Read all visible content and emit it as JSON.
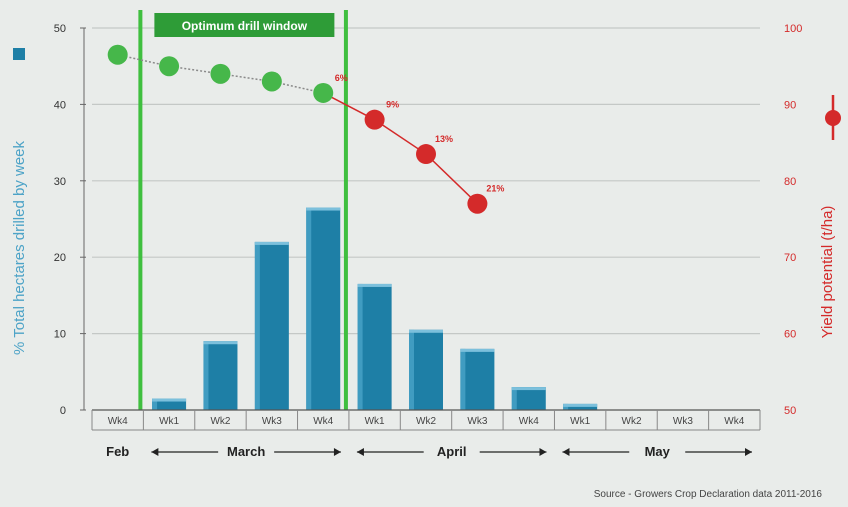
{
  "chart_data": {
    "type": "bar",
    "categories": [
      "Wk4",
      "Wk1",
      "Wk2",
      "Wk3",
      "Wk4",
      "Wk1",
      "Wk2",
      "Wk3",
      "Wk4",
      "Wk1",
      "Wk2",
      "Wk3",
      "Wk4"
    ],
    "months": [
      {
        "name": "Feb",
        "arrows": false
      },
      {
        "name": "March",
        "arrows": true
      },
      {
        "name": "April",
        "arrows": true
      },
      {
        "name": "May",
        "arrows": true
      }
    ],
    "bars": {
      "values": [
        0,
        1.5,
        9,
        22,
        26.5,
        16.5,
        10.5,
        8,
        3,
        0.8,
        0,
        0,
        0
      ],
      "color": "#1e7fa6"
    },
    "yield_line": {
      "values": [
        96.5,
        95,
        94,
        93,
        91.5,
        88,
        83.5,
        77
      ],
      "labels": [
        "",
        "",
        "",
        "",
        "6%",
        "9%",
        "13%",
        "21%"
      ],
      "green_color": "#46b74a",
      "red_color": "#d42a2a"
    },
    "window": {
      "label": "Optimum drill window",
      "start_index": 1,
      "end_index": 5,
      "color": "#3fbf3f"
    },
    "left_axis": {
      "label": "% Total hectares drilled by week",
      "ylim": [
        0,
        50
      ],
      "ticks": [
        0,
        10,
        20,
        30,
        40,
        50
      ]
    },
    "right_axis": {
      "label": "Yield potential (t/ha)",
      "ylim": [
        50,
        100
      ],
      "ticks": [
        50,
        60,
        70,
        80,
        90,
        100
      ]
    },
    "source": "Source - Growers Crop Declaration data 2011-2016",
    "grid": true
  }
}
